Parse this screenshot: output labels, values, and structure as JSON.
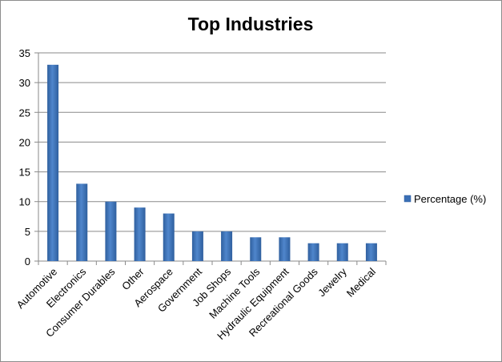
{
  "chart_data": {
    "type": "bar",
    "title": "Top Industries",
    "xlabel": "",
    "ylabel": "",
    "categories": [
      "Automotive",
      "Electronics",
      "Consumer Durables",
      "Other",
      "Aerospace",
      "Government",
      "Job Shops",
      "Machine Tools",
      "Hydraulic Equipment",
      "Recreational Goods",
      "Jewelry",
      "Medical"
    ],
    "series": [
      {
        "name": "Percentage (%)",
        "values": [
          33,
          13,
          10,
          9,
          8,
          5,
          5,
          4,
          4,
          3,
          3,
          3
        ],
        "color": "#4a7ebb"
      }
    ],
    "ylim": [
      0,
      35
    ],
    "yticks": [
      0,
      5,
      10,
      15,
      20,
      25,
      30,
      35
    ],
    "grid": true,
    "legend": "right"
  }
}
